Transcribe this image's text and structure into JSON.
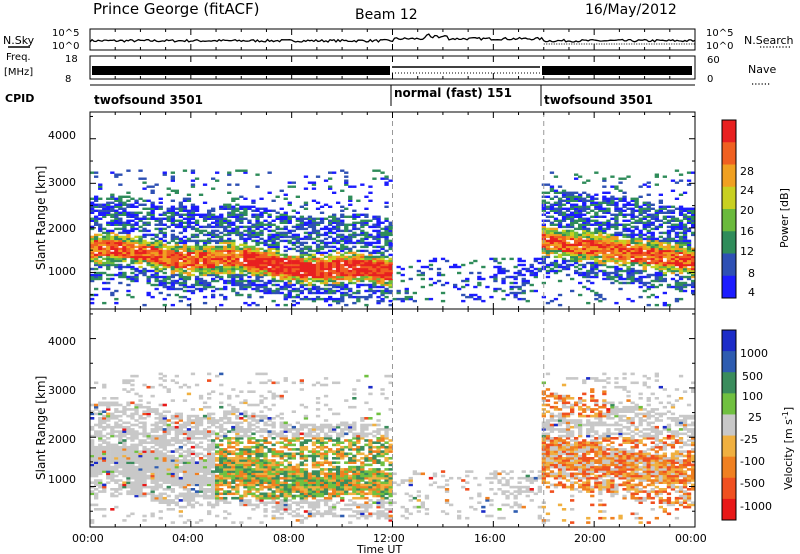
{
  "header": {
    "station": "Prince George (fitACF)",
    "beam": "Beam 12",
    "date": "16/May/2012"
  },
  "strips": {
    "nsky_label": "N.Sky",
    "nsearch_label": "N.Search",
    "noise_ticks": [
      "10^5",
      "10^0"
    ],
    "freq_label_top": "Freq.",
    "freq_label_unit": "[MHz]",
    "freq_ticks": [
      "18",
      "8"
    ],
    "nave_label": "Nave",
    "nave_ticks": [
      "60",
      "0"
    ],
    "cpid_label": "CPID",
    "cpid_segments": [
      {
        "label": "twofsound 3501",
        "start": 0,
        "end": 12
      },
      {
        "label": "normal (fast) 151",
        "start": 12,
        "end": 18
      },
      {
        "label": "twofsound 3501",
        "start": 18,
        "end": 24
      }
    ]
  },
  "chart_data": [
    {
      "type": "heatmap",
      "quantity": "Power",
      "ylabel": "Slant Range [km]",
      "colorbar_label": "Power [dB]",
      "colorbar_ticks": [
        "28",
        "24",
        "20",
        "16",
        "12",
        "8",
        "4"
      ],
      "colorbar_colors": [
        "#1c1cff",
        "#2e50b4",
        "#2f8c5a",
        "#6aba3c",
        "#c8d020",
        "#f0a020",
        "#f06020",
        "#e82020"
      ],
      "yticks": [
        "4000",
        "3000",
        "2000",
        "1000"
      ],
      "ylim": [
        180,
        4600
      ],
      "xlim": [
        0,
        24
      ]
    },
    {
      "type": "heatmap",
      "quantity": "Velocity",
      "ylabel": "Slant Range [km]",
      "colorbar_label": "Velocity [m s",
      "colorbar_label_sup": "-1",
      "colorbar_label_end": "]",
      "colorbar_ticks": [
        "1000",
        "500",
        "100",
        "25",
        "-25",
        "-100",
        "-500",
        "-1000"
      ],
      "colorbar_colors": [
        "#1c2cc8",
        "#2e5cb0",
        "#3a8c5c",
        "#70c040",
        "#c8c8c8",
        "#f0b040",
        "#f08020",
        "#f05020",
        "#e81818"
      ],
      "yticks": [
        "4000",
        "3000",
        "2000",
        "1000"
      ],
      "ylim": [
        180,
        4600
      ],
      "xlim": [
        0,
        24
      ]
    }
  ],
  "x_axis": {
    "ticks": [
      "00:00",
      "04:00",
      "08:00",
      "12:00",
      "16:00",
      "20:00",
      "00:00"
    ],
    "label": "Time UT"
  }
}
